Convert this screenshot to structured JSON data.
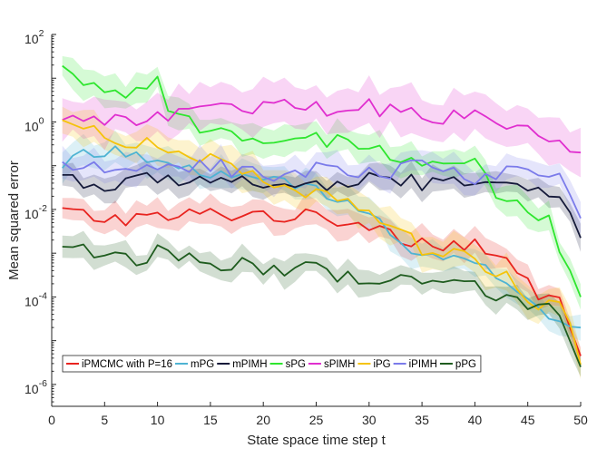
{
  "chart_data": {
    "type": "line",
    "title": "",
    "xlabel": "State space time step t",
    "ylabel": "Mean squared error",
    "xlim": [
      0,
      50
    ],
    "ylim_log10": [
      -6.5,
      2
    ],
    "y_scale": "log",
    "x_ticks": [
      0,
      5,
      10,
      15,
      20,
      25,
      30,
      35,
      40,
      45,
      50
    ],
    "y_ticks": [
      {
        "exp": 2,
        "label": "10",
        "sup": "2"
      },
      {
        "exp": 0,
        "label": "10",
        "sup": "0"
      },
      {
        "exp": -2,
        "label": "10",
        "sup": "-2"
      },
      {
        "exp": -4,
        "label": "10",
        "sup": "-4"
      },
      {
        "exp": -6,
        "label": "10",
        "sup": "-6"
      }
    ],
    "legend_position": "bottom-left",
    "series": [
      {
        "name": "iPMCMC with P=16",
        "color": "#e8231f",
        "band": 0.28,
        "knots": [
          [
            1,
            -2.05
          ],
          [
            5,
            -2.2
          ],
          [
            10,
            -2.2
          ],
          [
            15,
            -2.1
          ],
          [
            20,
            -2.1
          ],
          [
            25,
            -2.2
          ],
          [
            30,
            -2.3
          ],
          [
            33,
            -2.6
          ],
          [
            36,
            -2.8
          ],
          [
            40,
            -2.75
          ],
          [
            43,
            -3.3
          ],
          [
            46,
            -3.9
          ],
          [
            48,
            -4.1
          ],
          [
            50,
            -5.35
          ]
        ]
      },
      {
        "name": "mPG",
        "color": "#4eb3d3",
        "band": 0.3,
        "knots": [
          [
            1,
            -0.9
          ],
          [
            5,
            -0.7
          ],
          [
            10,
            -0.9
          ],
          [
            15,
            -1.1
          ],
          [
            20,
            -1.3
          ],
          [
            25,
            -1.6
          ],
          [
            30,
            -2.1
          ],
          [
            35,
            -3.0
          ],
          [
            40,
            -3.2
          ],
          [
            43,
            -3.8
          ],
          [
            46,
            -4.2
          ],
          [
            50,
            -4.7
          ]
        ]
      },
      {
        "name": "mPIMH",
        "color": "#151a3a",
        "band": 0.25,
        "knots": [
          [
            1,
            -1.2
          ],
          [
            5,
            -1.5
          ],
          [
            10,
            -1.3
          ],
          [
            15,
            -1.3
          ],
          [
            20,
            -1.4
          ],
          [
            25,
            -1.5
          ],
          [
            30,
            -1.35
          ],
          [
            35,
            -1.4
          ],
          [
            40,
            -1.3
          ],
          [
            45,
            -1.5
          ],
          [
            48,
            -1.8
          ],
          [
            50,
            -2.65
          ]
        ]
      },
      {
        "name": "sPG",
        "color": "#2ee62e",
        "band": 0.3,
        "knots": [
          [
            1,
            1.15
          ],
          [
            5,
            0.75
          ],
          [
            8,
            0.6
          ],
          [
            10,
            0.85
          ],
          [
            11,
            0.1
          ],
          [
            15,
            -0.2
          ],
          [
            20,
            -0.3
          ],
          [
            25,
            -0.4
          ],
          [
            30,
            -0.6
          ],
          [
            35,
            -1.1
          ],
          [
            40,
            -1.0
          ],
          [
            42,
            -1.7
          ],
          [
            45,
            -1.9
          ],
          [
            47,
            -2.3
          ],
          [
            50,
            -4.0
          ]
        ]
      },
      {
        "name": "sPIMH",
        "color": "#e02fcf",
        "band": 0.45,
        "knots": [
          [
            1,
            0.15
          ],
          [
            5,
            0.0
          ],
          [
            10,
            0.15
          ],
          [
            15,
            0.3
          ],
          [
            20,
            0.35
          ],
          [
            25,
            0.3
          ],
          [
            30,
            0.35
          ],
          [
            35,
            0.1
          ],
          [
            40,
            0.2
          ],
          [
            45,
            -0.2
          ],
          [
            50,
            -0.7
          ]
        ]
      },
      {
        "name": "iPG",
        "color": "#f5c30a",
        "band": 0.35,
        "knots": [
          [
            1,
            0.0
          ],
          [
            5,
            -0.3
          ],
          [
            10,
            -0.55
          ],
          [
            15,
            -0.9
          ],
          [
            20,
            -1.4
          ],
          [
            25,
            -1.7
          ],
          [
            30,
            -2.0
          ],
          [
            35,
            -2.9
          ],
          [
            40,
            -3.1
          ],
          [
            43,
            -3.6
          ],
          [
            46,
            -4.4
          ],
          [
            48,
            -4.0
          ],
          [
            50,
            -5.55
          ]
        ]
      },
      {
        "name": "iPIMH",
        "color": "#7b7bea",
        "band": 0.3,
        "knots": [
          [
            1,
            -1.1
          ],
          [
            5,
            -1.1
          ],
          [
            10,
            -0.95
          ],
          [
            15,
            -1.0
          ],
          [
            20,
            -1.2
          ],
          [
            25,
            -1.1
          ],
          [
            30,
            -1.2
          ],
          [
            35,
            -1.0
          ],
          [
            40,
            -1.3
          ],
          [
            45,
            -1.0
          ],
          [
            48,
            -1.25
          ],
          [
            50,
            -2.2
          ]
        ]
      },
      {
        "name": "pPG",
        "color": "#1f5c1f",
        "band": 0.25,
        "knots": [
          [
            1,
            -2.8
          ],
          [
            5,
            -3.0
          ],
          [
            8,
            -3.2
          ],
          [
            10,
            -2.95
          ],
          [
            15,
            -3.2
          ],
          [
            20,
            -3.35
          ],
          [
            25,
            -3.4
          ],
          [
            30,
            -3.65
          ],
          [
            35,
            -3.7
          ],
          [
            40,
            -3.8
          ],
          [
            45,
            -4.1
          ],
          [
            48,
            -4.3
          ],
          [
            50,
            -5.6
          ]
        ]
      }
    ]
  }
}
